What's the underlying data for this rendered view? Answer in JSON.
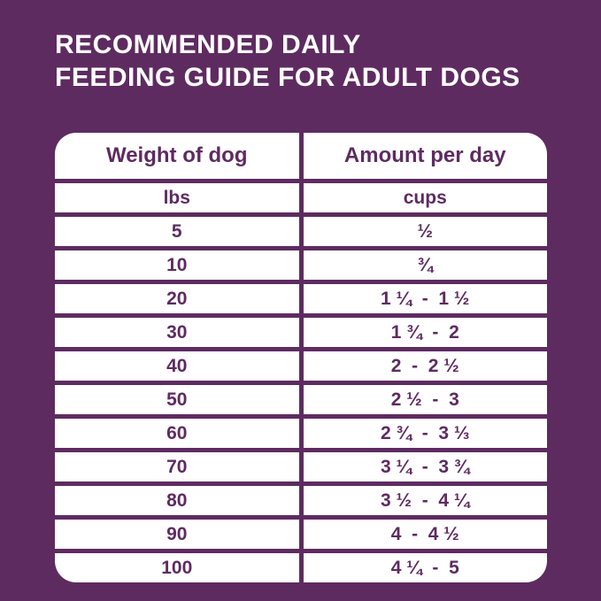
{
  "page": {
    "background_color": "#5e2b61",
    "text_color": "#5e2b61",
    "title_color": "#ffffff"
  },
  "title": {
    "line1": "RECOMMENDED DAILY",
    "line2": "FEEDING GUIDE FOR ADULT DOGS"
  },
  "table": {
    "headers": {
      "weight": "Weight of dog",
      "amount": "Amount per day"
    },
    "units": {
      "weight": "lbs",
      "amount": "cups"
    },
    "rows": [
      {
        "weight": "5",
        "amount": "½"
      },
      {
        "weight": "10",
        "amount": "¾"
      },
      {
        "weight": "20",
        "amount": "1 ¼  -  1 ½"
      },
      {
        "weight": "30",
        "amount": "1 ¾  -  2"
      },
      {
        "weight": "40",
        "amount": "2  -  2 ½"
      },
      {
        "weight": "50",
        "amount": "2 ½  -  3"
      },
      {
        "weight": "60",
        "amount": "2 ¾  -  3 ⅓"
      },
      {
        "weight": "70",
        "amount": "3 ¼  -  3 ¾"
      },
      {
        "weight": "80",
        "amount": "3 ½  -  4 ¼"
      },
      {
        "weight": "90",
        "amount": "4  -  4 ½"
      },
      {
        "weight": "100",
        "amount": "4 ¼  -  5"
      }
    ]
  },
  "chart_data": {
    "type": "table",
    "title": "Recommended Daily Feeding Guide for Adult Dogs",
    "columns": [
      "Weight of dog (lbs)",
      "Amount per day (cups)"
    ],
    "rows": [
      [
        "5",
        "½"
      ],
      [
        "10",
        "¾"
      ],
      [
        "20",
        "1 ¼ - 1 ½"
      ],
      [
        "30",
        "1 ¾ - 2"
      ],
      [
        "40",
        "2 - 2 ½"
      ],
      [
        "50",
        "2 ½ - 3"
      ],
      [
        "60",
        "2 ¾ - 3 ⅓"
      ],
      [
        "70",
        "3 ¼ - 3 ¾"
      ],
      [
        "80",
        "3 ½ - 4 ¼"
      ],
      [
        "90",
        "4 - 4 ½"
      ],
      [
        "100",
        "4 ¼ - 5"
      ]
    ]
  }
}
